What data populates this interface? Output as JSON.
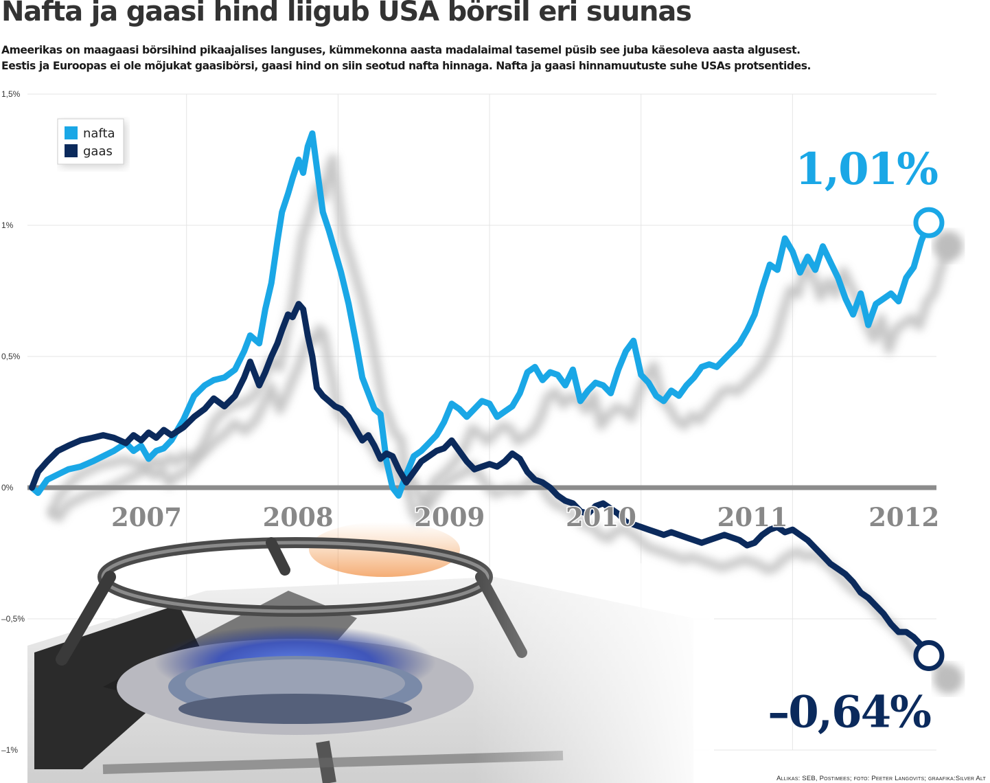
{
  "title": "Nafta ja gaasi hind liigub USA börsil eri suunas",
  "subtitle_line1": "Ameerikas on maagaasi börsihind pikaajalises languses, kümmekonna aasta madalaimal tasemel püsib see juba käesoleva aasta algusest.",
  "subtitle_line2": "Eestis ja Euroopas ei ole mõjukat gaasibörsi, gaasi hind on siin seotud nafta hinnaga. Nafta ja gaasi hinnamuutuste suhe USAs protsentides.",
  "credits": "Allikas: SEB, Postimees; foto: Peeter Langovits; graafika:Silver Alt",
  "colors": {
    "nafta": "#1aa7e6",
    "gaas": "#0b2a5c",
    "zero_line": "#8c8c8c",
    "year_labels": "#888888",
    "grid": "#e4e4e4",
    "shadow": "#bdbdbd"
  },
  "chart_data": {
    "type": "line",
    "title": "",
    "xlabel": "",
    "ylabel": "",
    "xlim": [
      2006.35,
      2012.35
    ],
    "ylim": [
      -1,
      1.5
    ],
    "y_ticks": [
      {
        "value": 1.5,
        "label": "1,5%"
      },
      {
        "value": 1,
        "label": "1%"
      },
      {
        "value": 0.5,
        "label": "0,5%"
      },
      {
        "value": 0,
        "label": "0%"
      },
      {
        "value": -0.5,
        "label": "–0,5%"
      },
      {
        "value": -1,
        "label": "–1%"
      }
    ],
    "x_ticks": [
      {
        "value": 2007,
        "label": "2007"
      },
      {
        "value": 2008,
        "label": "2008"
      },
      {
        "value": 2009,
        "label": "2009"
      },
      {
        "value": 2010,
        "label": "2010"
      },
      {
        "value": 2011,
        "label": "2011"
      },
      {
        "value": 2012,
        "label": "2012"
      }
    ],
    "x_gridlines": [
      2007.4,
      2008.4,
      2009.4,
      2010.4,
      2011.4
    ],
    "grid": true,
    "legend_position": "top-left",
    "series": [
      {
        "name": "nafta",
        "color_key": "nafta",
        "end_label": "1,01%",
        "points": [
          [
            2006.38,
            0.0
          ],
          [
            2006.42,
            -0.02
          ],
          [
            2006.48,
            0.03
          ],
          [
            2006.55,
            0.05
          ],
          [
            2006.62,
            0.07
          ],
          [
            2006.7,
            0.08
          ],
          [
            2006.78,
            0.1
          ],
          [
            2006.85,
            0.12
          ],
          [
            2006.92,
            0.14
          ],
          [
            2007.0,
            0.17
          ],
          [
            2007.05,
            0.14
          ],
          [
            2007.1,
            0.16
          ],
          [
            2007.15,
            0.11
          ],
          [
            2007.2,
            0.14
          ],
          [
            2007.25,
            0.15
          ],
          [
            2007.3,
            0.18
          ],
          [
            2007.38,
            0.26
          ],
          [
            2007.45,
            0.35
          ],
          [
            2007.52,
            0.39
          ],
          [
            2007.58,
            0.41
          ],
          [
            2007.65,
            0.42
          ],
          [
            2007.72,
            0.45
          ],
          [
            2007.78,
            0.52
          ],
          [
            2007.82,
            0.58
          ],
          [
            2007.88,
            0.55
          ],
          [
            2007.92,
            0.68
          ],
          [
            2007.96,
            0.78
          ],
          [
            2008.0,
            0.94
          ],
          [
            2008.03,
            1.05
          ],
          [
            2008.07,
            1.12
          ],
          [
            2008.1,
            1.18
          ],
          [
            2008.14,
            1.25
          ],
          [
            2008.17,
            1.2
          ],
          [
            2008.2,
            1.3
          ],
          [
            2008.23,
            1.35
          ],
          [
            2008.26,
            1.22
          ],
          [
            2008.3,
            1.05
          ],
          [
            2008.34,
            0.98
          ],
          [
            2008.38,
            0.9
          ],
          [
            2008.42,
            0.82
          ],
          [
            2008.47,
            0.7
          ],
          [
            2008.52,
            0.55
          ],
          [
            2008.56,
            0.42
          ],
          [
            2008.6,
            0.36
          ],
          [
            2008.64,
            0.3
          ],
          [
            2008.68,
            0.28
          ],
          [
            2008.72,
            0.1
          ],
          [
            2008.76,
            0.0
          ],
          [
            2008.8,
            -0.03
          ],
          [
            2008.85,
            0.05
          ],
          [
            2008.9,
            0.12
          ],
          [
            2008.95,
            0.14
          ],
          [
            2009.0,
            0.17
          ],
          [
            2009.05,
            0.2
          ],
          [
            2009.1,
            0.25
          ],
          [
            2009.15,
            0.32
          ],
          [
            2009.2,
            0.3
          ],
          [
            2009.25,
            0.27
          ],
          [
            2009.3,
            0.3
          ],
          [
            2009.35,
            0.33
          ],
          [
            2009.4,
            0.32
          ],
          [
            2009.45,
            0.27
          ],
          [
            2009.5,
            0.29
          ],
          [
            2009.55,
            0.31
          ],
          [
            2009.6,
            0.36
          ],
          [
            2009.65,
            0.44
          ],
          [
            2009.7,
            0.46
          ],
          [
            2009.75,
            0.41
          ],
          [
            2009.8,
            0.44
          ],
          [
            2009.85,
            0.43
          ],
          [
            2009.9,
            0.39
          ],
          [
            2009.95,
            0.45
          ],
          [
            2010.0,
            0.33
          ],
          [
            2010.05,
            0.37
          ],
          [
            2010.1,
            0.4
          ],
          [
            2010.15,
            0.39
          ],
          [
            2010.2,
            0.36
          ],
          [
            2010.25,
            0.45
          ],
          [
            2010.3,
            0.52
          ],
          [
            2010.35,
            0.56
          ],
          [
            2010.4,
            0.43
          ],
          [
            2010.45,
            0.4
          ],
          [
            2010.5,
            0.35
          ],
          [
            2010.55,
            0.33
          ],
          [
            2010.6,
            0.37
          ],
          [
            2010.65,
            0.35
          ],
          [
            2010.7,
            0.39
          ],
          [
            2010.75,
            0.42
          ],
          [
            2010.8,
            0.46
          ],
          [
            2010.85,
            0.47
          ],
          [
            2010.9,
            0.46
          ],
          [
            2010.95,
            0.49
          ],
          [
            2011.0,
            0.52
          ],
          [
            2011.05,
            0.55
          ],
          [
            2011.1,
            0.6
          ],
          [
            2011.15,
            0.66
          ],
          [
            2011.2,
            0.76
          ],
          [
            2011.25,
            0.85
          ],
          [
            2011.3,
            0.83
          ],
          [
            2011.35,
            0.95
          ],
          [
            2011.4,
            0.9
          ],
          [
            2011.45,
            0.82
          ],
          [
            2011.5,
            0.88
          ],
          [
            2011.55,
            0.83
          ],
          [
            2011.6,
            0.92
          ],
          [
            2011.65,
            0.86
          ],
          [
            2011.7,
            0.8
          ],
          [
            2011.75,
            0.72
          ],
          [
            2011.8,
            0.66
          ],
          [
            2011.85,
            0.74
          ],
          [
            2011.9,
            0.62
          ],
          [
            2011.95,
            0.7
          ],
          [
            2012.0,
            0.72
          ],
          [
            2012.05,
            0.74
          ],
          [
            2012.1,
            0.71
          ],
          [
            2012.15,
            0.8
          ],
          [
            2012.2,
            0.84
          ],
          [
            2012.25,
            0.94
          ],
          [
            2012.3,
            1.01
          ]
        ]
      },
      {
        "name": "gaas",
        "color_key": "gaas",
        "end_label": "–0,64%",
        "points": [
          [
            2006.38,
            0.0
          ],
          [
            2006.42,
            0.06
          ],
          [
            2006.48,
            0.1
          ],
          [
            2006.55,
            0.14
          ],
          [
            2006.62,
            0.16
          ],
          [
            2006.7,
            0.18
          ],
          [
            2006.78,
            0.19
          ],
          [
            2006.85,
            0.2
          ],
          [
            2006.92,
            0.19
          ],
          [
            2007.0,
            0.17
          ],
          [
            2007.05,
            0.2
          ],
          [
            2007.1,
            0.18
          ],
          [
            2007.15,
            0.21
          ],
          [
            2007.2,
            0.19
          ],
          [
            2007.25,
            0.22
          ],
          [
            2007.3,
            0.2
          ],
          [
            2007.38,
            0.23
          ],
          [
            2007.45,
            0.27
          ],
          [
            2007.52,
            0.3
          ],
          [
            2007.58,
            0.34
          ],
          [
            2007.65,
            0.31
          ],
          [
            2007.72,
            0.35
          ],
          [
            2007.78,
            0.42
          ],
          [
            2007.82,
            0.48
          ],
          [
            2007.88,
            0.39
          ],
          [
            2007.92,
            0.44
          ],
          [
            2007.96,
            0.5
          ],
          [
            2008.0,
            0.55
          ],
          [
            2008.03,
            0.6
          ],
          [
            2008.07,
            0.66
          ],
          [
            2008.1,
            0.65
          ],
          [
            2008.14,
            0.7
          ],
          [
            2008.17,
            0.68
          ],
          [
            2008.2,
            0.58
          ],
          [
            2008.23,
            0.5
          ],
          [
            2008.26,
            0.38
          ],
          [
            2008.3,
            0.35
          ],
          [
            2008.34,
            0.33
          ],
          [
            2008.38,
            0.31
          ],
          [
            2008.42,
            0.3
          ],
          [
            2008.47,
            0.27
          ],
          [
            2008.52,
            0.22
          ],
          [
            2008.56,
            0.18
          ],
          [
            2008.6,
            0.2
          ],
          [
            2008.64,
            0.16
          ],
          [
            2008.68,
            0.11
          ],
          [
            2008.72,
            0.13
          ],
          [
            2008.76,
            0.12
          ],
          [
            2008.8,
            0.07
          ],
          [
            2008.85,
            0.02
          ],
          [
            2008.9,
            0.06
          ],
          [
            2008.95,
            0.1
          ],
          [
            2009.0,
            0.12
          ],
          [
            2009.05,
            0.14
          ],
          [
            2009.1,
            0.15
          ],
          [
            2009.15,
            0.18
          ],
          [
            2009.2,
            0.14
          ],
          [
            2009.25,
            0.1
          ],
          [
            2009.3,
            0.07
          ],
          [
            2009.35,
            0.08
          ],
          [
            2009.4,
            0.09
          ],
          [
            2009.45,
            0.08
          ],
          [
            2009.5,
            0.1
          ],
          [
            2009.55,
            0.13
          ],
          [
            2009.6,
            0.11
          ],
          [
            2009.65,
            0.06
          ],
          [
            2009.7,
            0.03
          ],
          [
            2009.75,
            0.02
          ],
          [
            2009.8,
            0.0
          ],
          [
            2009.85,
            -0.03
          ],
          [
            2009.9,
            -0.05
          ],
          [
            2009.95,
            -0.06
          ],
          [
            2010.0,
            -0.09
          ],
          [
            2010.05,
            -0.1
          ],
          [
            2010.1,
            -0.07
          ],
          [
            2010.15,
            -0.06
          ],
          [
            2010.2,
            -0.08
          ],
          [
            2010.25,
            -0.1
          ],
          [
            2010.3,
            -0.13
          ],
          [
            2010.35,
            -0.14
          ],
          [
            2010.4,
            -0.15
          ],
          [
            2010.45,
            -0.16
          ],
          [
            2010.5,
            -0.17
          ],
          [
            2010.55,
            -0.18
          ],
          [
            2010.6,
            -0.17
          ],
          [
            2010.65,
            -0.18
          ],
          [
            2010.7,
            -0.19
          ],
          [
            2010.75,
            -0.2
          ],
          [
            2010.8,
            -0.21
          ],
          [
            2010.85,
            -0.2
          ],
          [
            2010.9,
            -0.19
          ],
          [
            2010.95,
            -0.18
          ],
          [
            2011.0,
            -0.19
          ],
          [
            2011.05,
            -0.2
          ],
          [
            2011.1,
            -0.22
          ],
          [
            2011.15,
            -0.21
          ],
          [
            2011.2,
            -0.18
          ],
          [
            2011.25,
            -0.16
          ],
          [
            2011.3,
            -0.15
          ],
          [
            2011.35,
            -0.17
          ],
          [
            2011.4,
            -0.16
          ],
          [
            2011.45,
            -0.18
          ],
          [
            2011.5,
            -0.2
          ],
          [
            2011.55,
            -0.23
          ],
          [
            2011.6,
            -0.26
          ],
          [
            2011.65,
            -0.29
          ],
          [
            2011.7,
            -0.31
          ],
          [
            2011.75,
            -0.33
          ],
          [
            2011.8,
            -0.36
          ],
          [
            2011.85,
            -0.4
          ],
          [
            2011.9,
            -0.42
          ],
          [
            2011.95,
            -0.45
          ],
          [
            2012.0,
            -0.48
          ],
          [
            2012.05,
            -0.52
          ],
          [
            2012.1,
            -0.55
          ],
          [
            2012.15,
            -0.55
          ],
          [
            2012.2,
            -0.57
          ],
          [
            2012.25,
            -0.6
          ],
          [
            2012.3,
            -0.64
          ]
        ]
      }
    ]
  }
}
